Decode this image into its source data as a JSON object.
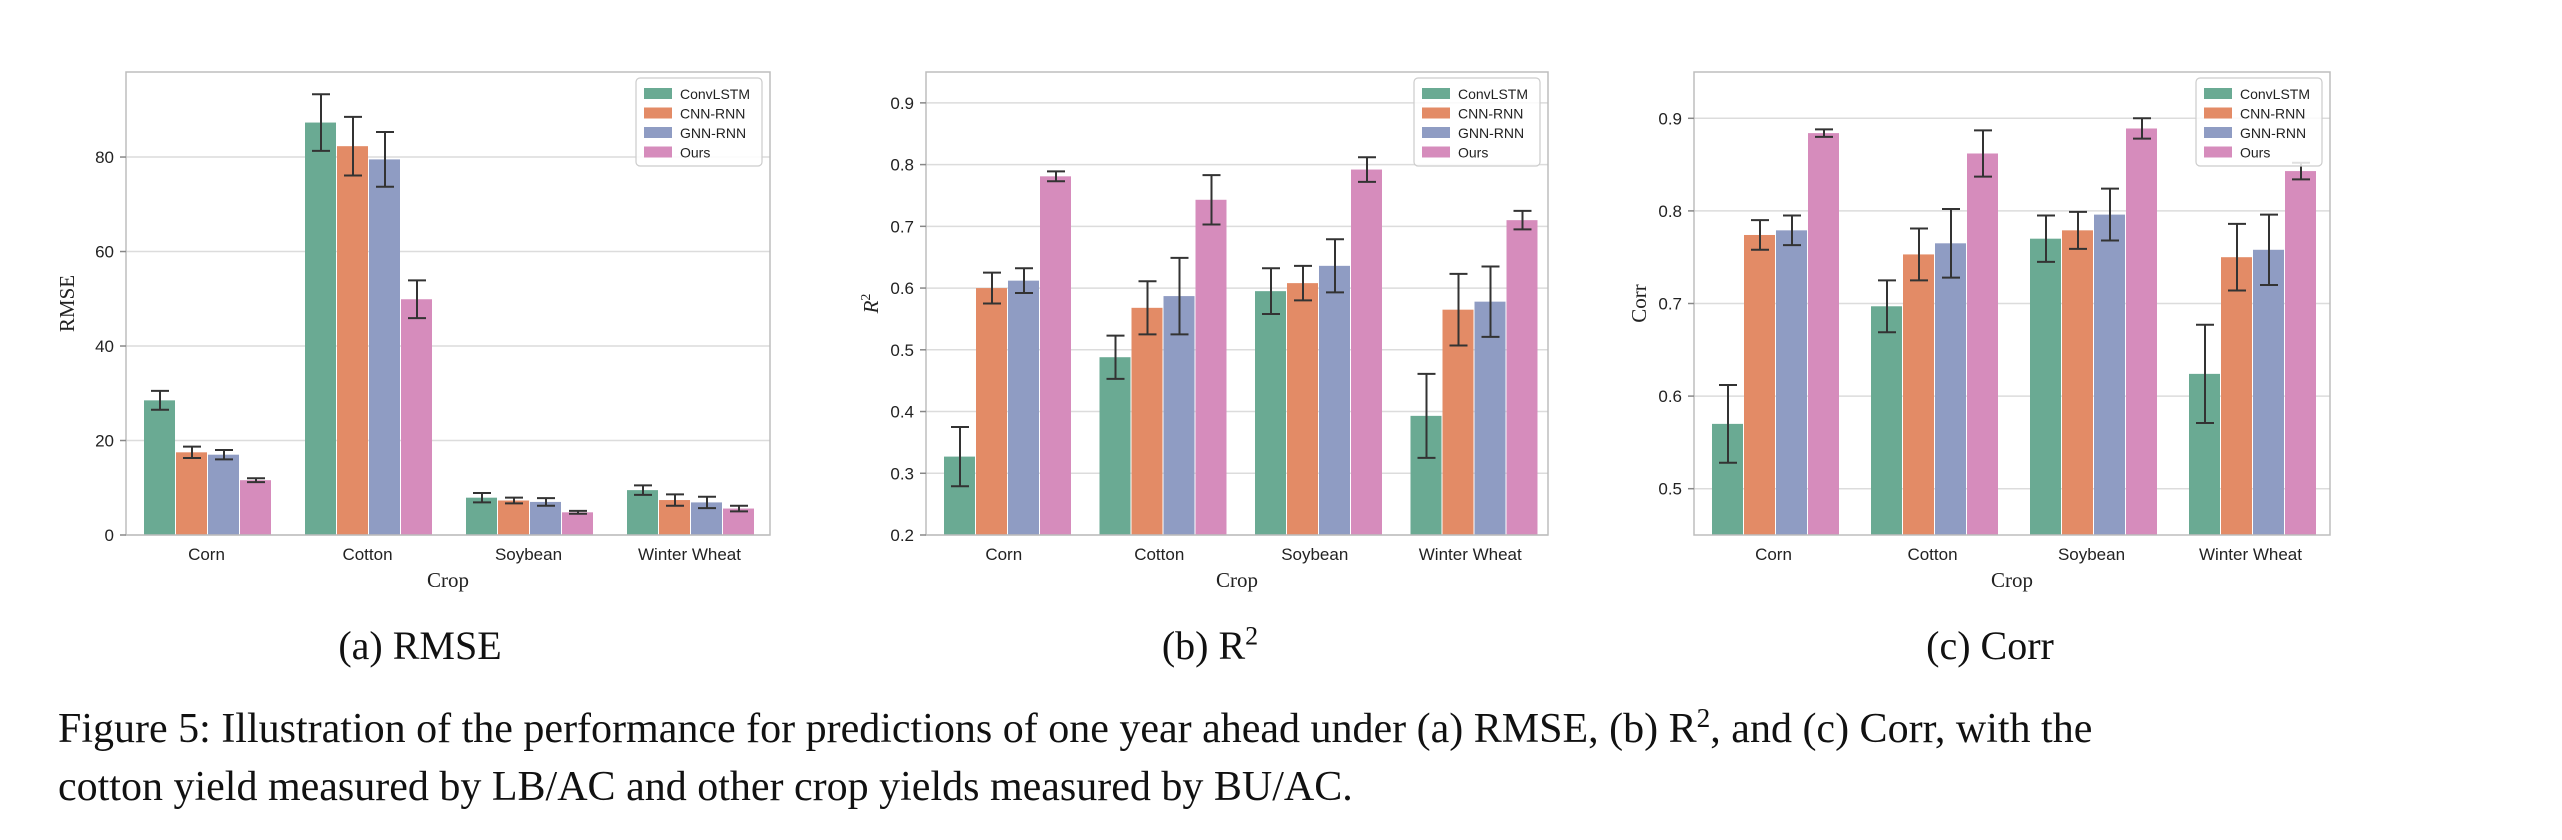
{
  "chart_data": [
    {
      "type": "bar",
      "subcaption": {
        "prefix": "(a) RMSE",
        "sup": ""
      },
      "xlabel": "Crop",
      "ylabel": "RMSE",
      "ylabel_sup": "",
      "categories": [
        "Corn",
        "Cotton",
        "Soybean",
        "Winter Wheat"
      ],
      "ylim": [
        0,
        98
      ],
      "yticks": [
        0,
        20,
        40,
        60,
        80
      ],
      "tick_decimals": 0,
      "legend": "top-right",
      "grid": true,
      "series": [
        {
          "name": "ConvLSTM",
          "color": "#6aaa93",
          "values": [
            28.5,
            87.3,
            7.9,
            9.5
          ],
          "errors": [
            2.0,
            6.0,
            1.0,
            1.0
          ]
        },
        {
          "name": "CNN-RNN",
          "color": "#e38b66",
          "values": [
            17.5,
            82.3,
            7.3,
            7.4
          ],
          "errors": [
            1.2,
            6.2,
            0.6,
            1.2
          ]
        },
        {
          "name": "GNN-RNN",
          "color": "#8f9cc3",
          "values": [
            17.0,
            79.5,
            7.0,
            6.9
          ],
          "errors": [
            1.0,
            5.8,
            0.8,
            1.2
          ]
        },
        {
          "name": "Ours",
          "color": "#d68cbc",
          "values": [
            11.6,
            49.9,
            4.8,
            5.6
          ],
          "errors": [
            0.4,
            4.0,
            0.3,
            0.6
          ]
        }
      ]
    },
    {
      "type": "bar",
      "subcaption": {
        "prefix": "(b) R",
        "sup": "2"
      },
      "xlabel": "Crop",
      "ylabel": "R",
      "ylabel_sup": "2",
      "categories": [
        "Corn",
        "Cotton",
        "Soybean",
        "Winter Wheat"
      ],
      "ylim": [
        0.2,
        0.95
      ],
      "yticks": [
        0.2,
        0.3,
        0.4,
        0.5,
        0.6,
        0.7,
        0.8,
        0.9
      ],
      "tick_decimals": 1,
      "legend": "top-right",
      "grid": true,
      "series": [
        {
          "name": "ConvLSTM",
          "color": "#6aaa93",
          "values": [
            0.327,
            0.488,
            0.595,
            0.393
          ],
          "errors": [
            0.048,
            0.035,
            0.037,
            0.068
          ]
        },
        {
          "name": "CNN-RNN",
          "color": "#e38b66",
          "values": [
            0.6,
            0.568,
            0.608,
            0.565
          ],
          "errors": [
            0.025,
            0.043,
            0.028,
            0.058
          ]
        },
        {
          "name": "GNN-RNN",
          "color": "#8f9cc3",
          "values": [
            0.612,
            0.587,
            0.636,
            0.578
          ],
          "errors": [
            0.02,
            0.062,
            0.043,
            0.057
          ]
        },
        {
          "name": "Ours",
          "color": "#d68cbc",
          "values": [
            0.781,
            0.743,
            0.792,
            0.71
          ],
          "errors": [
            0.008,
            0.04,
            0.02,
            0.015
          ]
        }
      ]
    },
    {
      "type": "bar",
      "subcaption": {
        "prefix": "(c) Corr",
        "sup": ""
      },
      "xlabel": "Crop",
      "ylabel": "Corr",
      "ylabel_sup": "",
      "categories": [
        "Corn",
        "Cotton",
        "Soybean",
        "Winter Wheat"
      ],
      "ylim": [
        0.45,
        0.95
      ],
      "yticks": [
        0.5,
        0.6,
        0.7,
        0.8,
        0.9
      ],
      "tick_decimals": 1,
      "legend": "top-right",
      "grid": true,
      "series": [
        {
          "name": "ConvLSTM",
          "color": "#6aaa93",
          "values": [
            0.57,
            0.697,
            0.77,
            0.624
          ],
          "errors": [
            0.042,
            0.028,
            0.025,
            0.053
          ]
        },
        {
          "name": "CNN-RNN",
          "color": "#e38b66",
          "values": [
            0.774,
            0.753,
            0.779,
            0.75
          ],
          "errors": [
            0.016,
            0.028,
            0.02,
            0.036
          ]
        },
        {
          "name": "GNN-RNN",
          "color": "#8f9cc3",
          "values": [
            0.779,
            0.765,
            0.796,
            0.758
          ],
          "errors": [
            0.016,
            0.037,
            0.028,
            0.038
          ]
        },
        {
          "name": "Ours",
          "color": "#d68cbc",
          "values": [
            0.884,
            0.862,
            0.889,
            0.843
          ],
          "errors": [
            0.004,
            0.025,
            0.011,
            0.009
          ]
        }
      ]
    }
  ],
  "caption": {
    "line1_a": "Figure 5: Illustration of the performance for predictions of one year ahead under (a) RMSE, (b) R",
    "line1_sup": "2",
    "line1_b": ", and (c) Corr, with the",
    "line2": "cotton yield measured by LB/AC and other crop yields measured by BU/AC."
  }
}
